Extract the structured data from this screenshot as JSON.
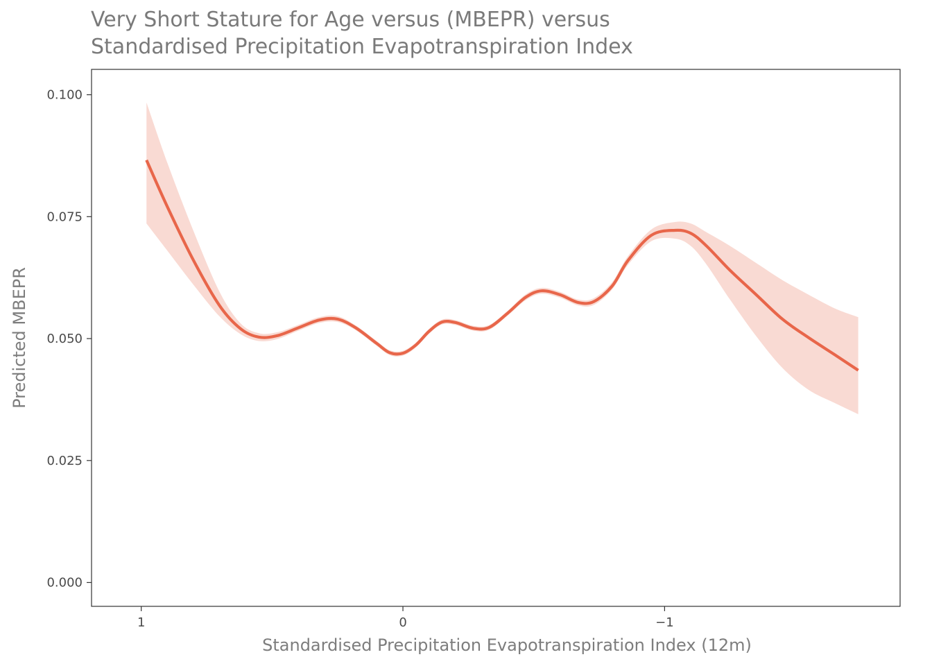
{
  "chart_data": {
    "type": "line",
    "title_lines": [
      "Very Short Stature for Age versus (MBEPR) versus",
      "Standardised Precipitation Evapotranspiration Index"
    ],
    "xlabel": "Standardised Precipitation Evapotranspiration Index (12m)",
    "ylabel": "Predicted MBEPR",
    "xlim": [
      1.19,
      -1.9
    ],
    "x_reversed": true,
    "ylim": [
      -0.0049,
      0.1052
    ],
    "x_ticks": [
      {
        "value": 1,
        "label": "1"
      },
      {
        "value": 0,
        "label": "0"
      },
      {
        "value": -1,
        "label": "−1"
      }
    ],
    "y_ticks": [
      {
        "value": 0.0,
        "label": "0.000"
      },
      {
        "value": 0.025,
        "label": "0.025"
      },
      {
        "value": 0.05,
        "label": "0.050"
      },
      {
        "value": 0.075,
        "label": "0.075"
      },
      {
        "value": 0.1,
        "label": "0.100"
      }
    ],
    "grid": false,
    "legend": "none",
    "colors": {
      "line": "#E8664A",
      "ribbon": "#F9DAD3",
      "frame": "#333333",
      "title": "#7a7a7a"
    },
    "series": [
      {
        "x": [
          0.98,
          0.9,
          0.8,
          0.7,
          0.62,
          0.55,
          0.48,
          0.4,
          0.32,
          0.25,
          0.18,
          0.1,
          0.05,
          0.0,
          -0.05,
          -0.1,
          -0.15,
          -0.2,
          -0.27,
          -0.33,
          -0.4,
          -0.47,
          -0.53,
          -0.6,
          -0.67,
          -0.73,
          -0.8,
          -0.86,
          -0.95,
          -1.04,
          -1.1,
          -1.16,
          -1.25,
          -1.35,
          -1.45,
          -1.55,
          -1.65,
          -1.74
        ],
        "y": [
          0.0866,
          0.077,
          0.066,
          0.0567,
          0.052,
          0.0503,
          0.0506,
          0.0522,
          0.0538,
          0.054,
          0.0522,
          0.049,
          0.0471,
          0.047,
          0.0487,
          0.0515,
          0.0534,
          0.0533,
          0.0521,
          0.0523,
          0.0552,
          0.0585,
          0.0598,
          0.059,
          0.0574,
          0.0576,
          0.0608,
          0.066,
          0.0712,
          0.0722,
          0.0716,
          0.069,
          0.064,
          0.059,
          0.054,
          0.0502,
          0.0467,
          0.0435
        ],
        "lower": [
          0.0736,
          0.068,
          0.061,
          0.0545,
          0.0509,
          0.0495,
          0.0499,
          0.0516,
          0.0532,
          0.0534,
          0.0517,
          0.0485,
          0.0466,
          0.0465,
          0.0482,
          0.051,
          0.0529,
          0.0528,
          0.0516,
          0.0518,
          0.0547,
          0.0579,
          0.0592,
          0.0584,
          0.0568,
          0.0569,
          0.0601,
          0.0651,
          0.07,
          0.0705,
          0.069,
          0.0652,
          0.058,
          0.0505,
          0.044,
          0.0395,
          0.0368,
          0.0345
        ],
        "upper": [
          0.0984,
          0.086,
          0.072,
          0.0595,
          0.0531,
          0.0511,
          0.0513,
          0.0528,
          0.0544,
          0.0546,
          0.0527,
          0.0495,
          0.0476,
          0.0475,
          0.0492,
          0.052,
          0.0539,
          0.0538,
          0.0526,
          0.0528,
          0.0557,
          0.0591,
          0.0604,
          0.0596,
          0.058,
          0.0583,
          0.0616,
          0.0669,
          0.0724,
          0.0739,
          0.0736,
          0.0718,
          0.069,
          0.0655,
          0.062,
          0.059,
          0.0562,
          0.0544
        ]
      }
    ]
  }
}
